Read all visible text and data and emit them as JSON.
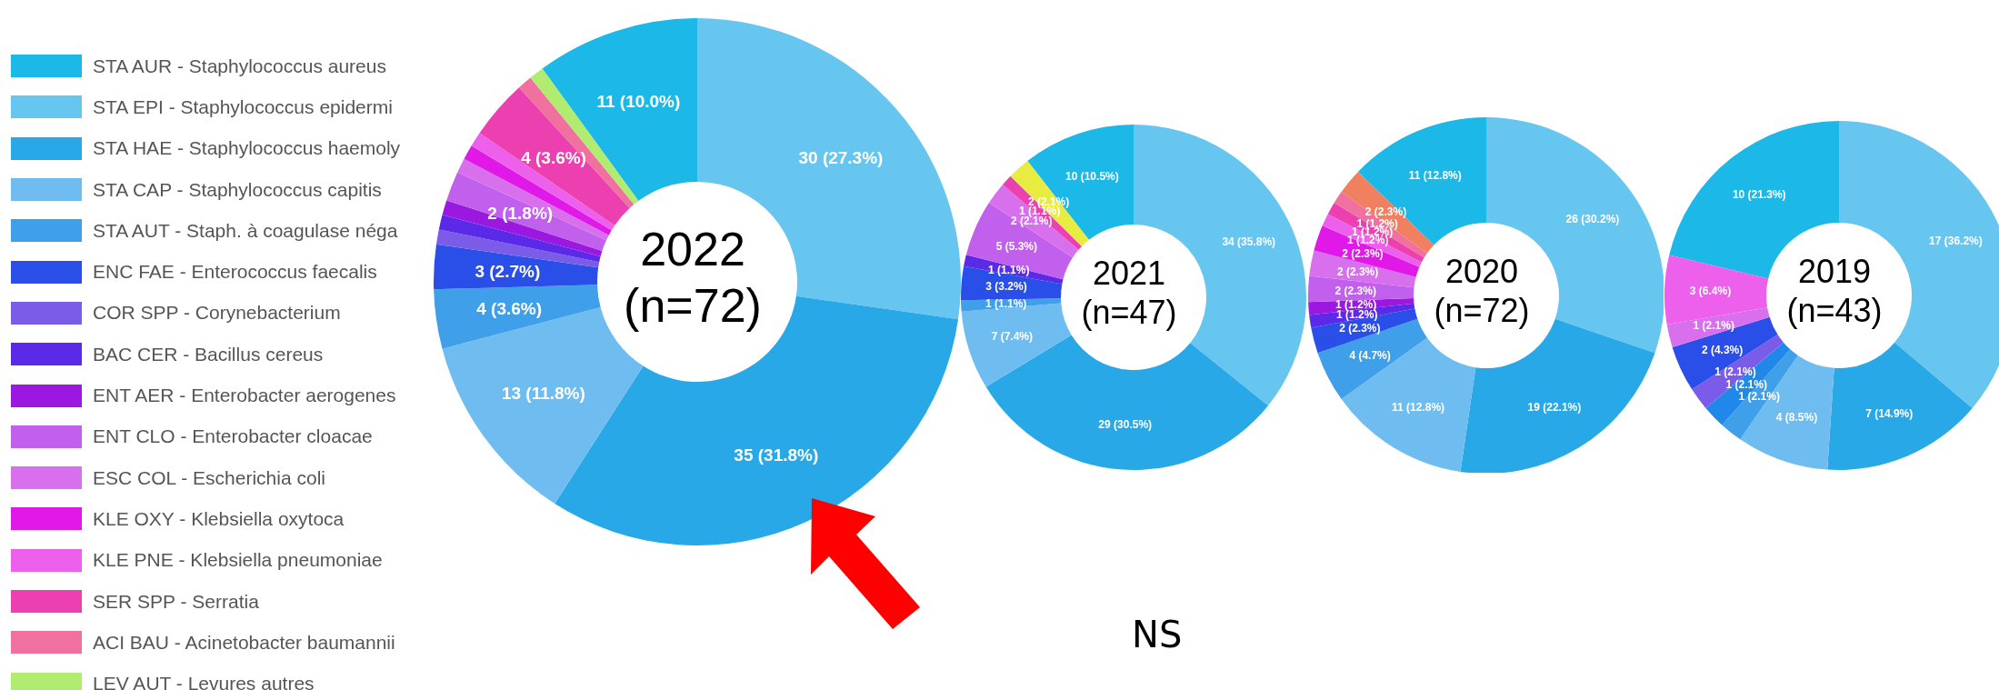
{
  "chart_data": [
    {
      "type": "donut",
      "title": "2022",
      "subtitle": "(n=72)",
      "legend": "left",
      "categories": [
        "STA AUR - Staphylococcus aureus",
        "STA EPI - Staphylococcus epidermi",
        "STA HAE - Staphylococcus haemoly",
        "STA CAP - Staphylococcus capitis",
        "STA AUT - Staph. à coagulase néga",
        "ENC FAE - Enterococcus faecalis",
        "COR SPP - Corynebacterium",
        "BAC CER - Bacillus cereus",
        "ENT AER - Enterobacter aerogenes",
        "ENT CLO - Enterobacter cloacae",
        "ESC COL - Escherichia coli",
        "KLE OXY - Klebsiella oxytoca",
        "KLE PNE - Klebsiella pneumoniae",
        "SER SPP - Serratia",
        "ACI BAU - Acinetobacter baumannii",
        "LEV AUT - Levures autres"
      ],
      "values": [
        11,
        30,
        35,
        13,
        4,
        3,
        1,
        1,
        1,
        2,
        1,
        1,
        1,
        4,
        1,
        1
      ],
      "colors": [
        "#1cb8e8",
        "#66c6ef",
        "#29a8e8",
        "#6fbdf0",
        "#3f9fe8",
        "#2a4fe8",
        "#7b5ce8",
        "#5a2ae8",
        "#9b18e0",
        "#c060ec",
        "#d870ee",
        "#e018e8",
        "#ec60ec",
        "#ec40b0",
        "#f070a0",
        "#b0ec70"
      ],
      "value_labels": [
        "11 (10.0%)",
        "30 (27.3%)",
        "35 (31.8%)",
        "13 (11.8%)",
        "4 (3.6%)",
        "3 (2.7%)",
        null,
        null,
        null,
        "2 (1.8%)",
        null,
        null,
        null,
        "4 (3.6%)",
        null,
        null
      ]
    },
    {
      "type": "donut",
      "title": "2021",
      "subtitle": "(n=47)",
      "annotations": [
        "NS"
      ],
      "categories": [
        null,
        null,
        null,
        null,
        null,
        null,
        null,
        null,
        null,
        null,
        null
      ],
      "values": [
        10,
        34,
        29,
        7,
        1,
        3,
        1,
        5,
        2,
        1,
        2
      ],
      "colors": [
        "#1cb8e8",
        "#66c6ef",
        "#29a8e8",
        "#6fbdf0",
        "#3f9fe8",
        "#2a4fe8",
        "#5a2ae8",
        "#c060ec",
        "#d870ee",
        "#ec40b0",
        "#e8ec40"
      ],
      "value_labels": [
        "10 (10.5%)",
        "34 (35.8%)",
        "29 (30.5%)",
        "7 (7.4%)",
        "1 (1.1%)",
        "3 (3.2%)",
        "1 (1.1%)",
        "5 (5.3%)",
        "2 (2.1%)",
        "1 (1.1%)",
        "2 (2.1%)"
      ]
    },
    {
      "type": "donut",
      "title": "2020",
      "subtitle": "(n=72)",
      "categories": [
        null,
        null,
        null,
        null,
        null,
        null,
        null,
        null,
        null,
        null,
        null,
        null,
        null,
        null,
        null
      ],
      "values": [
        11,
        26,
        19,
        11,
        4,
        2,
        1,
        1,
        2,
        2,
        2,
        1,
        1,
        1,
        2
      ],
      "colors": [
        "#1cb8e8",
        "#66c6ef",
        "#29a8e8",
        "#6fbdf0",
        "#3f9fe8",
        "#2a4fe8",
        "#5a2ae8",
        "#9b18e0",
        "#c060ec",
        "#d870ee",
        "#e018e8",
        "#ec60ec",
        "#ec40b0",
        "#f070a0",
        "#f08060"
      ],
      "value_labels": [
        "11 (12.8%)",
        "26 (30.2%)",
        "19 (22.1%)",
        "11 (12.8%)",
        "4 (4.7%)",
        "2 (2.3%)",
        "1 (1.2%)",
        "1 (1.2%)",
        "2 (2.3%)",
        "2 (2.3%)",
        "2 (2.3%)",
        "1 (1.2%)",
        "1 (1.2%)",
        "1 (1.2%)",
        "2 (2.3%)"
      ]
    },
    {
      "type": "donut",
      "title": "2019",
      "subtitle": "(n=43)",
      "categories": [
        null,
        null,
        null,
        null,
        null,
        null,
        null,
        null,
        null,
        null
      ],
      "values": [
        10,
        17,
        7,
        4,
        1,
        1,
        1,
        2,
        1,
        3
      ],
      "colors": [
        "#1cb8e8",
        "#66c6ef",
        "#29a8e8",
        "#6fbdf0",
        "#3f9fe8",
        "#2088e8",
        "#7b5ce8",
        "#2a4fe8",
        "#d870ee",
        "#ec60ec"
      ],
      "value_labels": [
        "10 (21.3%)",
        "17 (36.2%)",
        "7 (14.9%)",
        "4 (8.5%)",
        "1 (2.1%)",
        "1 (2.1%)",
        "1 (2.1%)",
        "2 (4.3%)",
        "1 (2.1%)",
        "3 (6.4%)"
      ]
    }
  ]
}
